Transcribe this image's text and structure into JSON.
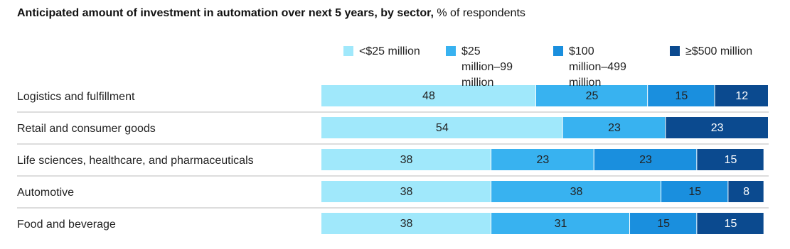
{
  "chart_data": {
    "type": "stacked-bar-horizontal",
    "title": "Anticipated amount of investment in automation over next 5 years, by sector,",
    "subtitle": "% of respondents",
    "categories": [
      "Logistics and fulfillment",
      "Retail and consumer goods",
      "Life sciences, healthcare, and pharmaceuticals",
      "Automotive",
      "Food and beverage"
    ],
    "series": [
      {
        "name": "<$25 million",
        "color": "#a0e8fb",
        "values": [
          48,
          54,
          38,
          38,
          38
        ]
      },
      {
        "name": "$25 million–99 million",
        "color": "#38b2f0",
        "values": [
          25,
          23,
          23,
          38,
          31
        ]
      },
      {
        "name": "$100 million–499 million",
        "color": "#1a8fde",
        "values": [
          15,
          null,
          23,
          15,
          15
        ]
      },
      {
        "name": "≥$500 million",
        "color": "#0b4a8f",
        "values": [
          12,
          23,
          15,
          8,
          15
        ]
      }
    ],
    "xlim": [
      0,
      100
    ]
  }
}
